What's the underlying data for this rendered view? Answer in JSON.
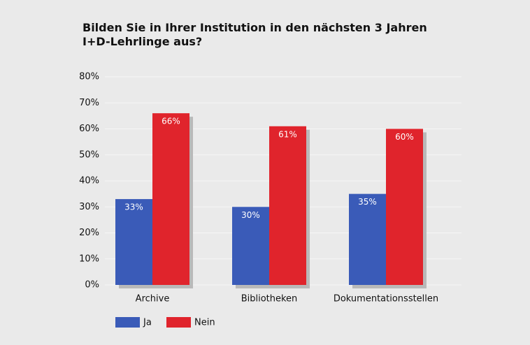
{
  "chart_data": {
    "type": "bar",
    "title": "Bilden Sie in Ihrer Institution in den nächsten 3 Jahren\nI+D-Lehrlinge aus?",
    "categories": [
      "Archive",
      "Bibliotheken",
      "Dokumentationsstellen"
    ],
    "series": [
      {
        "name": "Ja",
        "color": "#3a5bb8",
        "values": [
          33,
          30,
          35
        ],
        "value_labels": [
          "33%",
          "30%",
          "35%"
        ]
      },
      {
        "name": "Nein",
        "color": "#e0242c",
        "values": [
          66,
          61,
          60
        ],
        "value_labels": [
          "66%",
          "61%",
          "60%"
        ]
      }
    ],
    "ylim": [
      0,
      80
    ],
    "yticks": [
      {
        "value": 0,
        "label": "0%"
      },
      {
        "value": 10,
        "label": "10%"
      },
      {
        "value": 20,
        "label": "20%"
      },
      {
        "value": 30,
        "label": "30%"
      },
      {
        "value": 40,
        "label": "40%"
      },
      {
        "value": 50,
        "label": "50%"
      },
      {
        "value": 60,
        "label": "60%"
      },
      {
        "value": 70,
        "label": "70%"
      },
      {
        "value": 80,
        "label": "80%"
      }
    ],
    "grid": true
  }
}
